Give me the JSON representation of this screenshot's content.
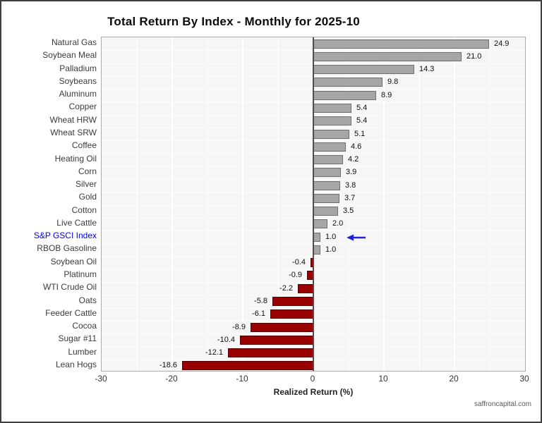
{
  "page": {
    "watermark": "saffroncapital.com"
  },
  "chart_data": {
    "type": "bar",
    "orientation": "horizontal",
    "title": "Total Return By Index - Monthly for 2025-10",
    "xlabel": "Realized Return (%)",
    "xlim": [
      -30,
      30
    ],
    "xticks": [
      -30,
      -20,
      -10,
      0,
      10,
      20,
      30
    ],
    "grid": "vertical every 5, light on gray panel",
    "legend": "none",
    "categories": [
      "Natural Gas",
      "Soybean Meal",
      "Palladium",
      "Soybeans",
      "Aluminum",
      "Copper",
      "Wheat HRW",
      "Wheat SRW",
      "Coffee",
      "Heating Oil",
      "Corn",
      "Silver",
      "Gold",
      "Cotton",
      "Live Cattle",
      "S&P GSCI Index",
      "RBOB Gasoline",
      "Soybean Oil",
      "Platinum",
      "WTI Crude Oil",
      "Oats",
      "Feeder Cattle",
      "Cocoa",
      "Sugar #11",
      "Lumber",
      "Lean Hogs"
    ],
    "values": [
      24.9,
      21.0,
      14.3,
      9.8,
      8.9,
      5.4,
      5.4,
      5.1,
      4.6,
      4.2,
      3.9,
      3.8,
      3.7,
      3.5,
      2.0,
      1.0,
      1.0,
      -0.4,
      -0.9,
      -2.2,
      -5.8,
      -6.1,
      -8.9,
      -10.4,
      -12.1,
      -18.6
    ],
    "highlight": {
      "category": "S&P GSCI Index",
      "label_color": "#0000ee",
      "arrow": "blue left-pointing arrow at bar end",
      "arrow_color": "#2222dd"
    },
    "colors": {
      "positive_fill": "#a6a6a6",
      "positive_border": "#6f6f6f",
      "negative_fill": "#990000",
      "negative_border": "#550000",
      "panel_bg": "#f6f6f6",
      "zero_line": "#4d4d4d"
    }
  }
}
